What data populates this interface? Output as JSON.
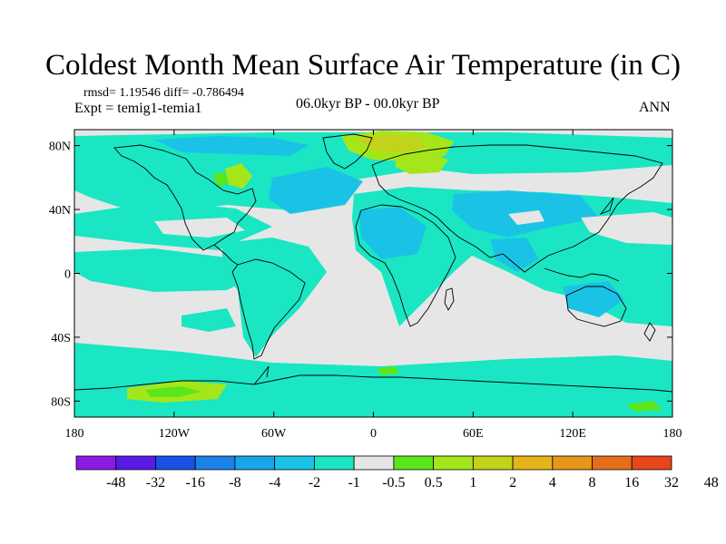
{
  "title": "Coldest Month Mean Surface Air Temperature (in C)",
  "stats_line": "rmsd= 1.19546 diff= -0.786494",
  "experiment_line": "Expt = temig1-temia1",
  "period_line": "06.0kyr BP - 00.0kyr BP",
  "season": "ANN",
  "map": {
    "lat_ticks": [
      {
        "lat": 80,
        "label": "80N"
      },
      {
        "lat": 40,
        "label": "40N"
      },
      {
        "lat": 0,
        "label": "0"
      },
      {
        "lat": -40,
        "label": "40S"
      },
      {
        "lat": -80,
        "label": "80S"
      }
    ],
    "lon_ticks": [
      {
        "lon": -180,
        "label": "180"
      },
      {
        "lon": -120,
        "label": "120W"
      },
      {
        "lon": -60,
        "label": "60W"
      },
      {
        "lon": 0,
        "label": "0"
      },
      {
        "lon": 60,
        "label": "60E"
      },
      {
        "lon": 120,
        "label": "120E"
      },
      {
        "lon": 180,
        "label": "180"
      }
    ],
    "lon_range": [
      -180,
      180
    ],
    "lat_range": [
      -90,
      90
    ],
    "background_color": "#e6e6e6",
    "coast_color": "#000000"
  },
  "legend": {
    "colors": [
      "#8c1ae6",
      "#5a1ae6",
      "#1a50e6",
      "#1a82e6",
      "#1aa5e6",
      "#1ac3e6",
      "#1ae6c3",
      "#e6e6e6",
      "#5ae61a",
      "#a5e61a",
      "#c3d21a",
      "#e6b41a",
      "#e6961a",
      "#e66e1a",
      "#e6461a"
    ],
    "labels": [
      "-48",
      "-32",
      "-16",
      "-8",
      "-4",
      "-2",
      "-1",
      "-0.5",
      "0.5",
      "1",
      "2",
      "4",
      "8",
      "16",
      "32",
      "48"
    ]
  }
}
